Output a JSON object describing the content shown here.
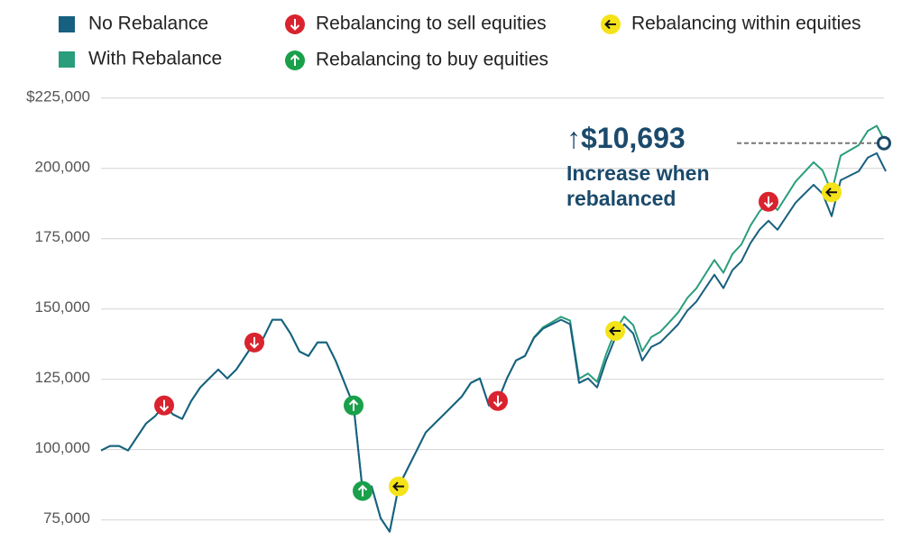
{
  "chart_data": {
    "type": "line",
    "ylim": [
      67500,
      227500
    ],
    "yticks": [
      {
        "value": 75000,
        "label": "75,000"
      },
      {
        "value": 100000,
        "label": "100,000"
      },
      {
        "value": 125000,
        "label": "125,000"
      },
      {
        "value": 150000,
        "label": "150,000"
      },
      {
        "value": 175000,
        "label": "175,000"
      },
      {
        "value": 200000,
        "label": "200,000"
      },
      {
        "value": 225000,
        "label": "$225,000"
      }
    ],
    "grid": true,
    "series": [
      {
        "name": "With Rebalance",
        "color": "#2a9d7c",
        "values": [
          99700,
          101300,
          101300,
          99700,
          104500,
          109300,
          111900,
          115700,
          112500,
          110900,
          117300,
          122100,
          125300,
          128500,
          125300,
          128500,
          133300,
          138100,
          139700,
          146200,
          146200,
          141300,
          134900,
          133300,
          138100,
          138100,
          131700,
          123700,
          115700,
          85300,
          86900,
          75600,
          70800,
          86900,
          93300,
          99700,
          106100,
          109300,
          112500,
          115700,
          118900,
          123700,
          125300,
          115700,
          117300,
          125300,
          131700,
          133300,
          139950,
          143500,
          145350,
          147200,
          145850,
          125200,
          127050,
          124100,
          133950,
          142200,
          147350,
          144300,
          134950,
          140000,
          141850,
          145300,
          148850,
          153900,
          157350,
          162400,
          167450,
          162900,
          169550,
          173000,
          179650,
          184700,
          188150,
          185200,
          190250,
          195300,
          198750,
          202200,
          199250,
          191500,
          204550,
          206400,
          208250,
          213300,
          215150,
          209000
        ]
      },
      {
        "name": "No Rebalance",
        "color": "#17607f",
        "values": [
          99700,
          101300,
          101300,
          99700,
          104500,
          109300,
          111900,
          115700,
          112500,
          110900,
          117300,
          122100,
          125300,
          128500,
          125300,
          128500,
          133300,
          138100,
          139700,
          146200,
          146200,
          141300,
          134900,
          133300,
          138100,
          138100,
          131700,
          123700,
          115700,
          85300,
          86900,
          75600,
          70800,
          86900,
          93300,
          99700,
          106100,
          109300,
          112500,
          115700,
          118900,
          123700,
          125300,
          115700,
          117300,
          125300,
          131700,
          133300,
          139700,
          143000,
          144600,
          146200,
          144600,
          123700,
          125300,
          122100,
          131700,
          139700,
          144600,
          141300,
          131700,
          136500,
          138100,
          141300,
          144600,
          149400,
          152600,
          157400,
          162200,
          157400,
          163800,
          167000,
          173400,
          178200,
          181400,
          178200,
          183000,
          187800,
          191000,
          194200,
          191000,
          183000,
          195800,
          197400,
          199000,
          203800,
          205400,
          199000
        ]
      }
    ],
    "markers": [
      {
        "name": "Rebalancing to sell equities",
        "color": "#d9232e",
        "points": [
          7,
          17,
          44,
          74
        ]
      },
      {
        "name": "Rebalancing to buy equities",
        "color": "#1aa04a",
        "points": [
          28,
          29
        ]
      },
      {
        "name": "Rebalancing within equities",
        "color": "#f5e31a",
        "points": [
          33,
          57,
          81
        ]
      }
    ],
    "annotation": {
      "label": "$10,693",
      "text": "Increase when rebalanced"
    }
  }
}
